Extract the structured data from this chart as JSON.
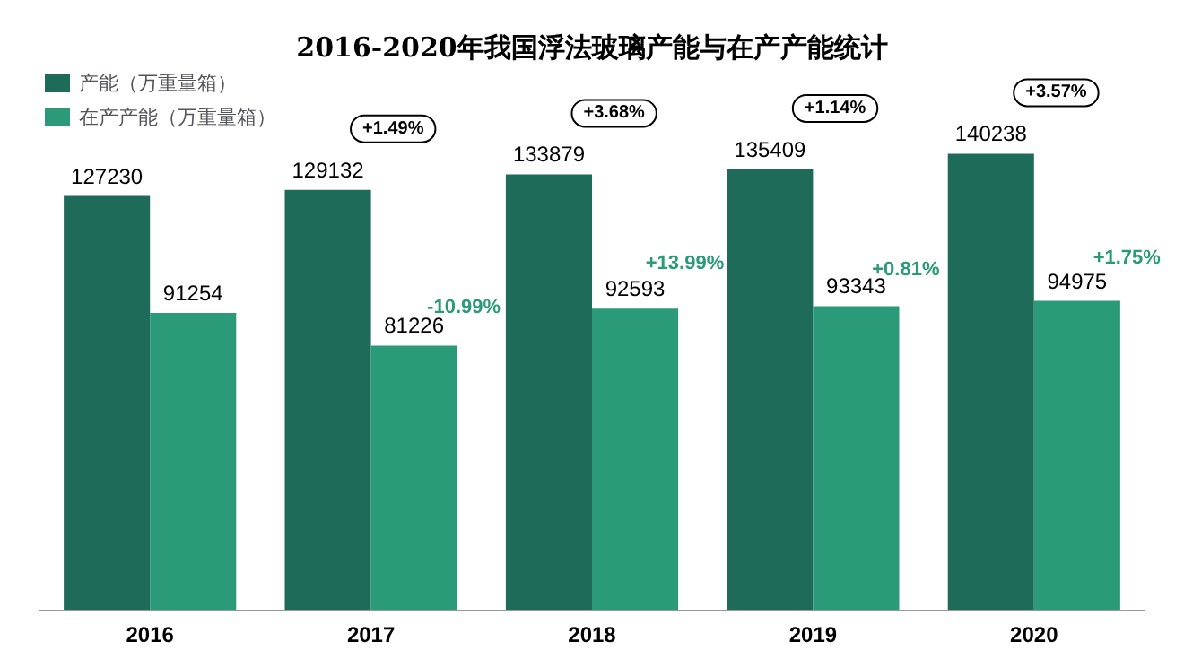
{
  "chart_data": {
    "type": "bar",
    "title": "2016-2020年我国浮法玻璃产能与在产产能统计",
    "categories": [
      "2016",
      "2017",
      "2018",
      "2019",
      "2020"
    ],
    "series": [
      {
        "name": "产能（万重量箱）",
        "color": "#1e6b5a",
        "values": [
          127230,
          129132,
          133879,
          135409,
          140238
        ]
      },
      {
        "name": "在产产能（万重量箱）",
        "color": "#2b9a78",
        "values": [
          91254,
          81226,
          92593,
          93343,
          94975
        ]
      }
    ],
    "data_labels": true,
    "legend": "top left",
    "grid": false,
    "annotations": [
      "+1.49%",
      "+3.68%",
      "+1.14%",
      "+3.57%",
      {
        "text": "-10.99%",
        "x": "2017",
        "y": 93000
      },
      {
        "text": "+13.99%",
        "x": "2018",
        "y": 106500
      },
      {
        "text": "+0.81%",
        "x": "2019",
        "y": 104500
      },
      {
        "text": "+1.75%",
        "x": "2020",
        "y": 108000
      }
    ]
  }
}
